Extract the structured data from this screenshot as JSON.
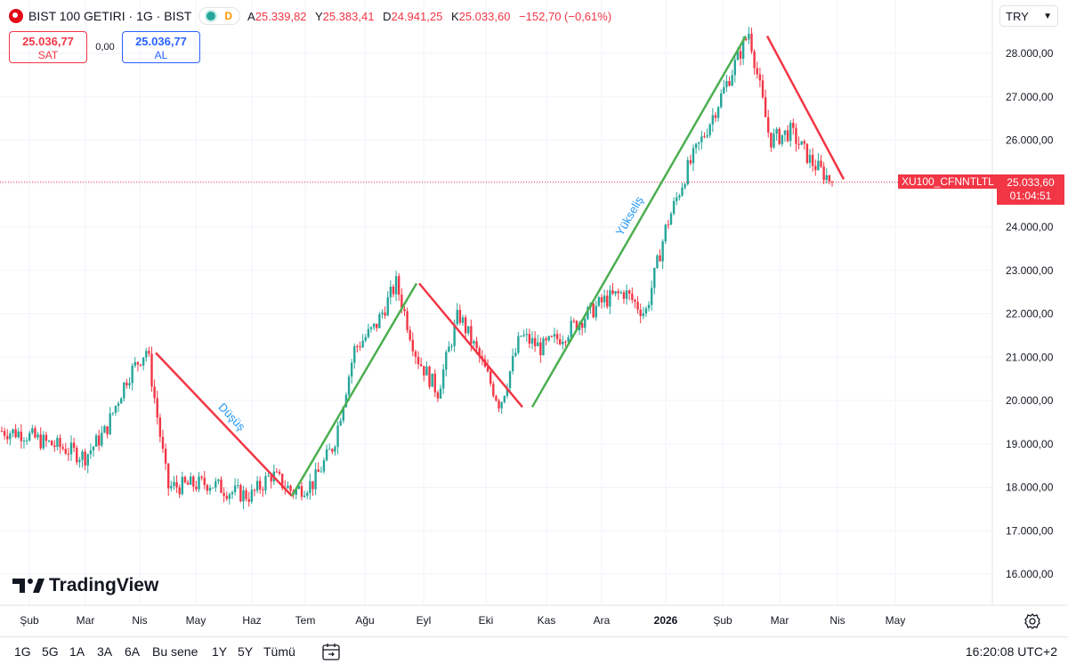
{
  "header": {
    "title": "BIST 100 GETIRI · 1G · BIST",
    "delay_badge": "D",
    "ohlc": [
      {
        "label": "A",
        "value": "25.339,82"
      },
      {
        "label": "Y",
        "value": "25.383,41"
      },
      {
        "label": "D",
        "value": "24.941,25"
      },
      {
        "label": "K",
        "value": "25.033,60"
      }
    ],
    "change": "−152,70 (−0,61%)"
  },
  "trade": {
    "sell_price": "25.036,77",
    "sell_label": "SAT",
    "spread": "0,00",
    "buy_price": "25.036,77",
    "buy_label": "AL"
  },
  "currency": "TRY",
  "price_tag": {
    "symbol": "XU100_CFNNTLTL",
    "price": "25.033,60",
    "countdown": "01:04:51"
  },
  "colors": {
    "up": "#26a69a",
    "down": "#f23645",
    "trend_up": "#4caf50",
    "trend_down": "#f23645",
    "label": "#2196f3"
  },
  "logo_text": "TradingView",
  "time_ranges": [
    "1G",
    "5G",
    "1A",
    "3A",
    "6A",
    "Bu sene",
    "1Y",
    "5Y",
    "Tümü"
  ],
  "time_readout": "16:20:08 UTC+2",
  "icons": {
    "settings": "gear-icon",
    "date_range": "calendar-icon",
    "logo": "tradingview-logo-icon",
    "flag": "turkey-flag-icon"
  },
  "chart_data": {
    "type": "candlestick",
    "y_ticks": [
      "16.000,00",
      "17.000,00",
      "18.000,00",
      "19.000,00",
      "20.000,00",
      "21.000,00",
      "22.000,00",
      "23.000,00",
      "24.000,00",
      "25.000,00",
      "26.000,00",
      "27.000,00",
      "28.000,00"
    ],
    "x_ticks": [
      {
        "label": "Şub",
        "bold": false
      },
      {
        "label": "Mar",
        "bold": false
      },
      {
        "label": "Nis",
        "bold": false
      },
      {
        "label": "May",
        "bold": false
      },
      {
        "label": "Haz",
        "bold": false
      },
      {
        "label": "Tem",
        "bold": false
      },
      {
        "label": "Ağu",
        "bold": false
      },
      {
        "label": "Eyl",
        "bold": false
      },
      {
        "label": "Eki",
        "bold": false
      },
      {
        "label": "Kas",
        "bold": false
      },
      {
        "label": "Ara",
        "bold": false
      },
      {
        "label": "2026",
        "bold": true
      },
      {
        "label": "Şub",
        "bold": false
      },
      {
        "label": "Mar",
        "bold": false
      },
      {
        "label": "Nis",
        "bold": false
      },
      {
        "label": "May",
        "bold": false
      }
    ],
    "ylim": [
      15600,
      28800
    ],
    "last_price": 25033.6,
    "trend_path": [
      19300,
      19250,
      19050,
      18900,
      18700,
      19300,
      20500,
      21200,
      18000,
      18050,
      18100,
      17900,
      17800,
      18300,
      17900,
      18100,
      19000,
      21200,
      21700,
      22700,
      21000,
      20200,
      22000,
      21000,
      19900,
      21500,
      21200,
      21500,
      21900,
      22300,
      22500,
      22000,
      24000,
      25300,
      26300,
      27400,
      28500,
      26000,
      26200,
      25500,
      25050
    ],
    "annotations": [
      {
        "type": "trend",
        "direction": "down",
        "from": [
          0.175,
          21100
        ],
        "to": [
          0.328,
          17800
        ],
        "label": "Düşüş"
      },
      {
        "type": "trend",
        "direction": "up",
        "from": [
          0.328,
          17800
        ],
        "to": [
          0.468,
          22700
        ]
      },
      {
        "type": "trend",
        "direction": "down",
        "from": [
          0.471,
          22700
        ],
        "to": [
          0.587,
          19850
        ]
      },
      {
        "type": "trend",
        "direction": "up",
        "from": [
          0.598,
          19850
        ],
        "to": [
          0.838,
          28400
        ],
        "label": "Yükseliş"
      },
      {
        "type": "trend",
        "direction": "down",
        "from": [
          0.862,
          28400
        ],
        "to": [
          0.948,
          25100
        ]
      }
    ]
  }
}
